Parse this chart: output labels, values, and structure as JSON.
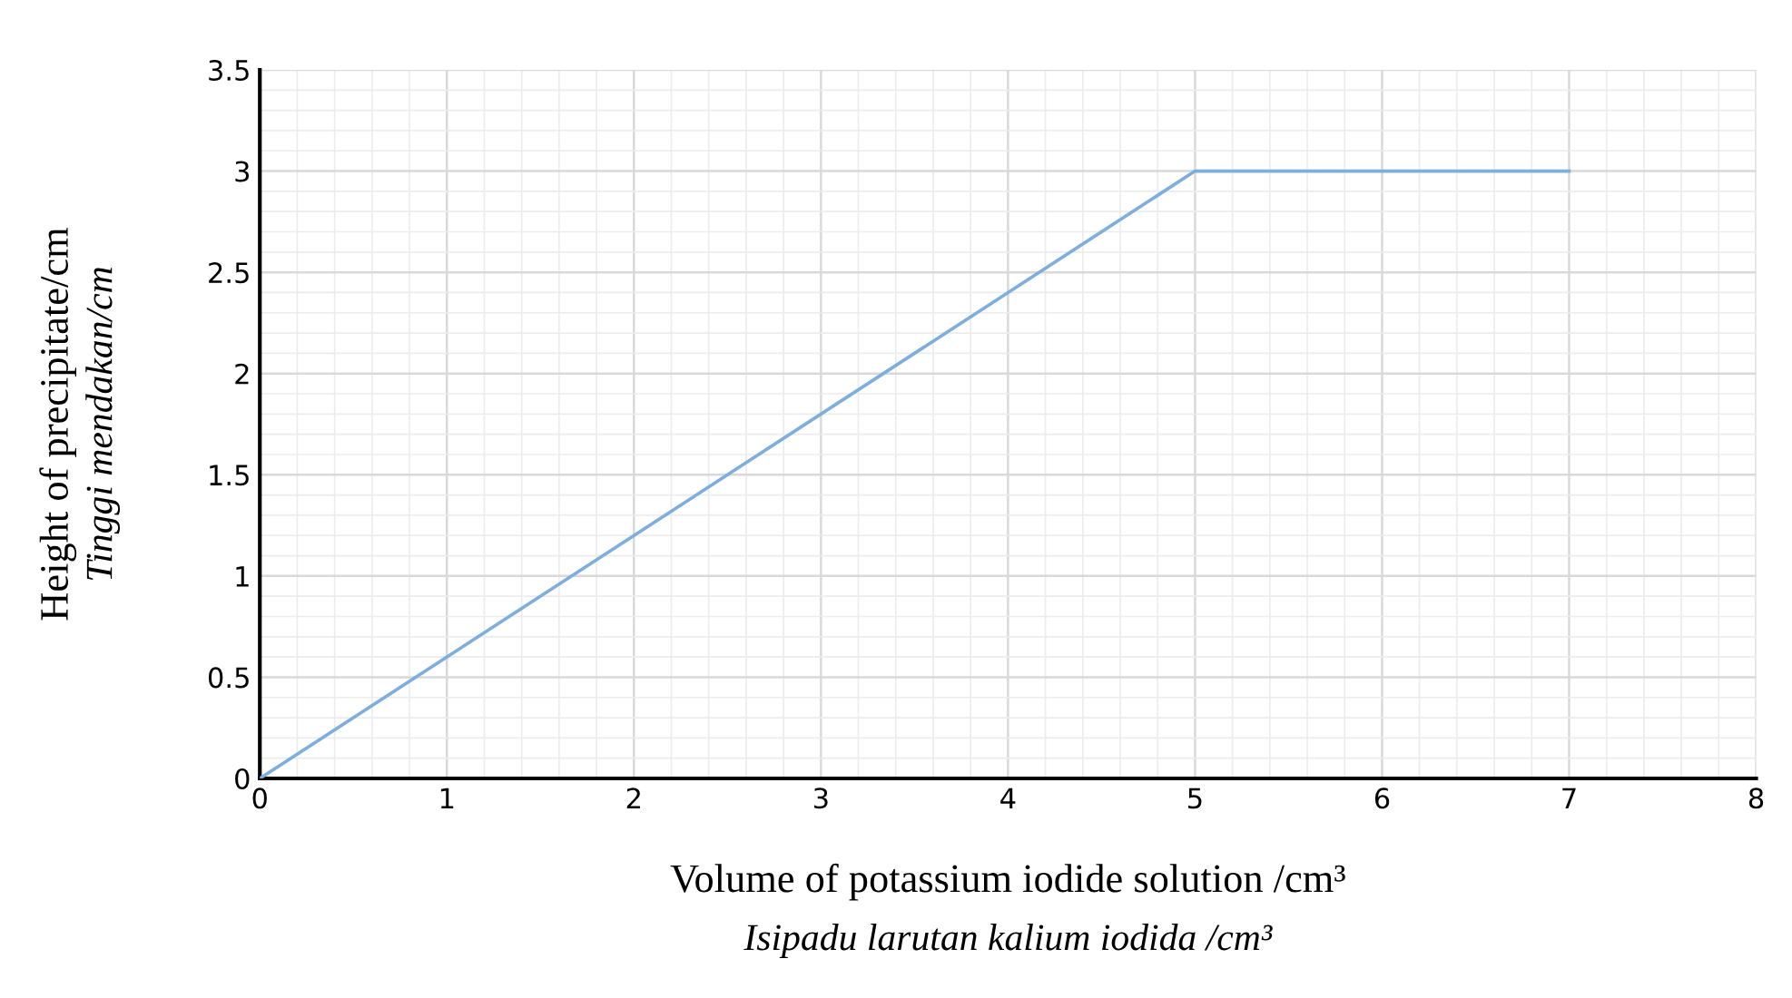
{
  "chart_data": {
    "type": "line",
    "xlabel": "Volume of potassium iodide solution /cm³\nIsipadu larutan kalium iodida /cm³",
    "ylabel": "Height of precipitate/cm\nTinggi mendakan/cm",
    "x": [
      0,
      5,
      7
    ],
    "series": [
      {
        "color": "#7eaee0",
        "values": [
          0,
          3,
          3
        ]
      }
    ],
    "xlim": [
      0,
      8
    ],
    "xticks": [
      0,
      1,
      2,
      3,
      4,
      5,
      6,
      7,
      8
    ],
    "ylim": [
      0,
      3.5
    ],
    "yticks": [
      0,
      0.5,
      1,
      1.5,
      2,
      2.5,
      3,
      3.5
    ],
    "grid": true,
    "marker": "none",
    "line_style": "solid"
  }
}
